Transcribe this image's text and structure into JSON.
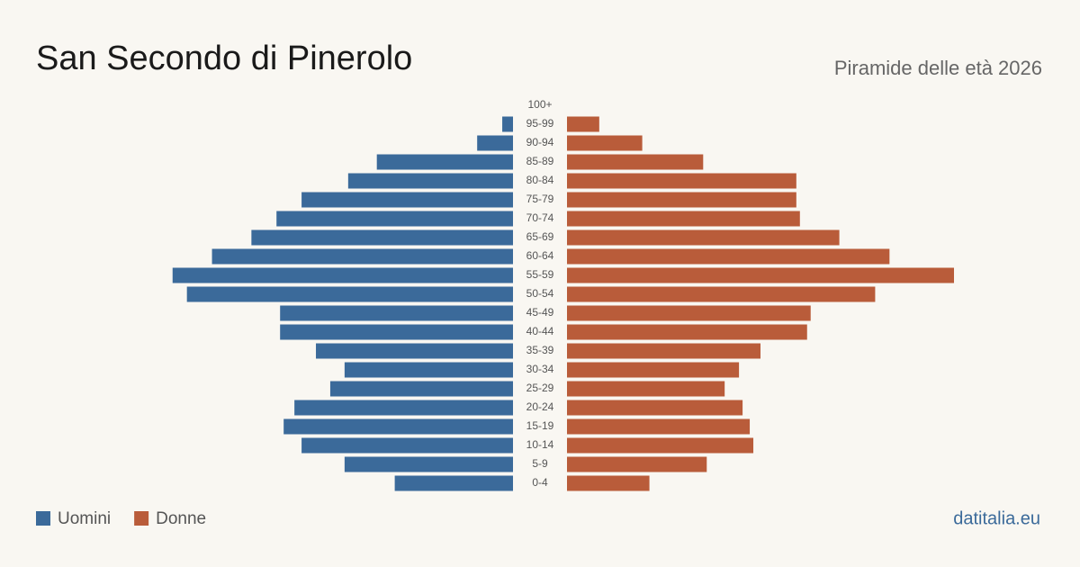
{
  "chart_data": {
    "type": "pyramid",
    "title": "San Secondo di Pinerolo",
    "subtitle": "Piramide delle età 2026",
    "source": "datitalia.eu",
    "categories": [
      "100+",
      "95-99",
      "90-94",
      "85-89",
      "80-84",
      "75-79",
      "70-74",
      "65-69",
      "60-64",
      "55-59",
      "50-54",
      "45-49",
      "40-44",
      "35-39",
      "30-34",
      "25-29",
      "20-24",
      "15-19",
      "10-14",
      "5-9",
      "0-4"
    ],
    "series": [
      {
        "name": "Uomini",
        "color": "#3b6a9a",
        "values": [
          0,
          3,
          10,
          38,
          46,
          59,
          66,
          73,
          84,
          95,
          91,
          65,
          65,
          55,
          47,
          51,
          61,
          64,
          59,
          47,
          33
        ]
      },
      {
        "name": "Donne",
        "color": "#b95c3a",
        "values": [
          0,
          9,
          21,
          38,
          64,
          64,
          65,
          76,
          90,
          108,
          86,
          68,
          67,
          54,
          48,
          44,
          49,
          51,
          52,
          39,
          23
        ]
      }
    ]
  }
}
